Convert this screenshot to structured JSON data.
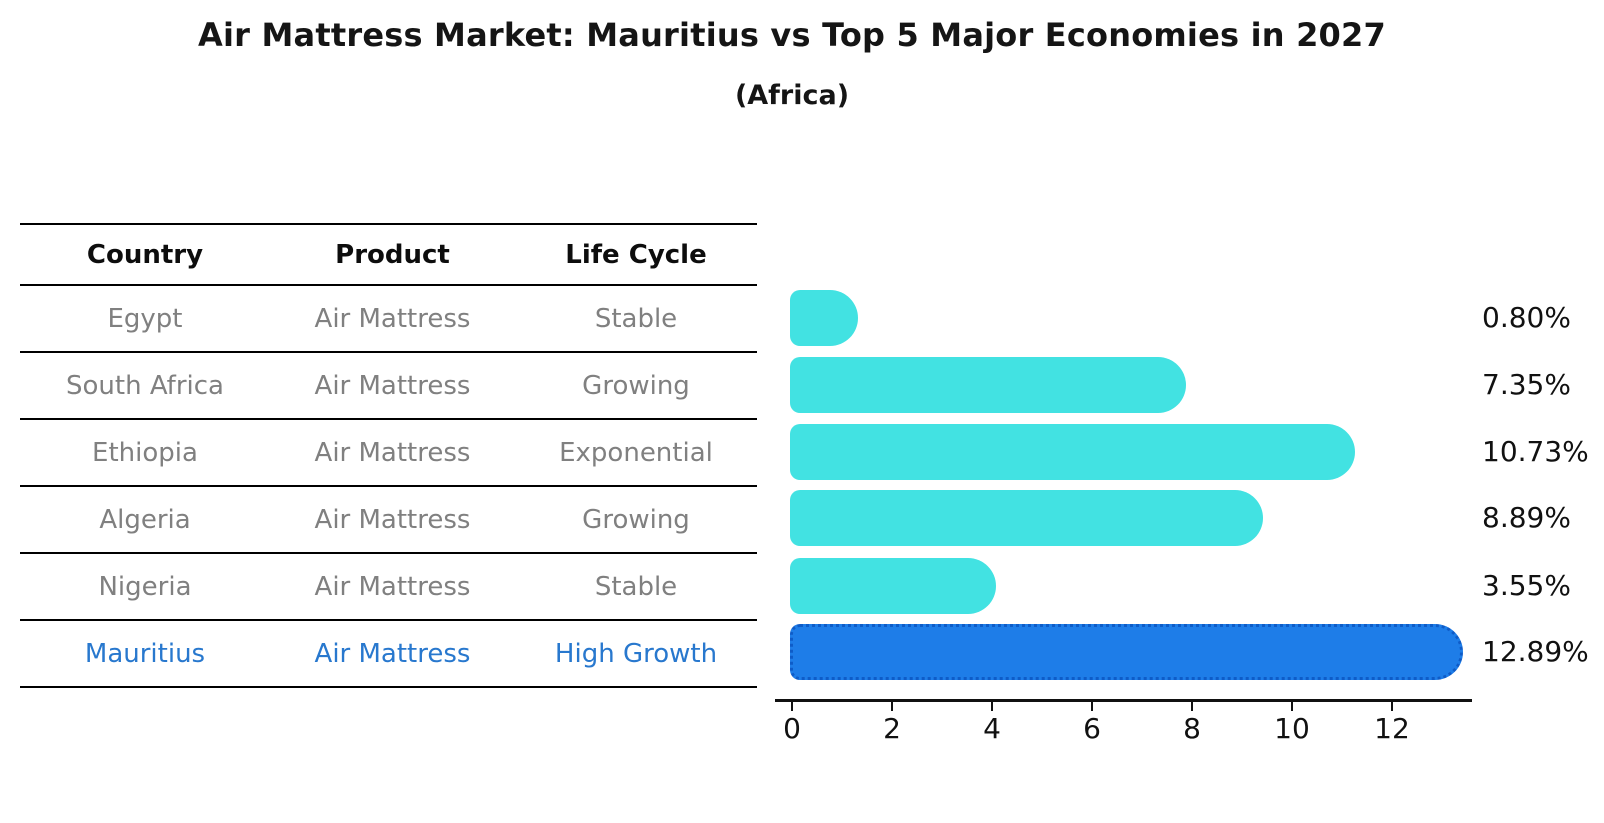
{
  "title": "Air Mattress Market: Mauritius vs Top 5 Major Economies in 2027",
  "subtitle": "(Africa)",
  "table": {
    "headers": [
      "Country",
      "Product",
      "Life Cycle"
    ],
    "rows": [
      {
        "country": "Egypt",
        "product": "Air Mattress",
        "life_cycle": "Stable",
        "highlight": false
      },
      {
        "country": "South Africa",
        "product": "Air Mattress",
        "life_cycle": "Growing",
        "highlight": false
      },
      {
        "country": "Ethiopia",
        "product": "Air Mattress",
        "life_cycle": "Exponential",
        "highlight": false
      },
      {
        "country": "Algeria",
        "product": "Air Mattress",
        "life_cycle": "Growing",
        "highlight": false
      },
      {
        "country": "Nigeria",
        "product": "Air Mattress",
        "life_cycle": "Stable",
        "highlight": false
      },
      {
        "country": "Mauritius",
        "product": "Air Mattress",
        "life_cycle": "High Growth",
        "highlight": true
      }
    ]
  },
  "chart_data": {
    "type": "bar",
    "orientation": "horizontal",
    "title": "Air Mattress Market: Mauritius vs Top 5 Major Economies in 2027",
    "subtitle": "(Africa)",
    "categories": [
      "Egypt",
      "South Africa",
      "Ethiopia",
      "Algeria",
      "Nigeria",
      "Mauritius"
    ],
    "values": [
      0.8,
      7.35,
      10.73,
      8.89,
      3.55,
      12.89
    ],
    "value_labels": [
      "0.80%",
      "7.35%",
      "10.73%",
      "8.89%",
      "3.55%",
      "12.89%"
    ],
    "xlabel": "",
    "ylabel": "",
    "xlim": [
      0,
      13.5
    ],
    "xticks": [
      0,
      2,
      4,
      6,
      8,
      10,
      12
    ],
    "grid": false,
    "legend": false,
    "bar_color": "#42E2E2",
    "highlight_bar_color": "#1E7DE8",
    "highlight_text_color": "#2878CE",
    "highlight_index": 5
  }
}
